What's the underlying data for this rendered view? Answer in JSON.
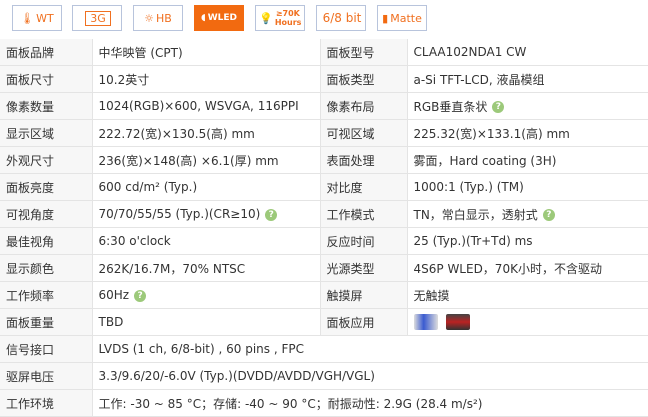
{
  "badges": [
    {
      "label": "WT",
      "icon": "thermometer-icon"
    },
    {
      "label": "3G",
      "icon": "3g-icon"
    },
    {
      "label": "HB",
      "icon": "sun-icon"
    },
    {
      "label": "WLED",
      "icon": "led-icon"
    },
    {
      "label": "≥70K Hours",
      "icon": "bulb-icon"
    },
    {
      "label": "6/8 bit",
      "icon": "bit-icon"
    },
    {
      "label": "Matte",
      "icon": "matte-icon"
    }
  ],
  "colors": {
    "accent": "#f26a10",
    "help": "#9cc97a"
  },
  "rows": [
    {
      "l1": "面板品牌",
      "v1": "中华映管 (CPT)",
      "l2": "面板型号",
      "v2": "CLAA102NDA1 CW"
    },
    {
      "l1": "面板尺寸",
      "v1": "10.2英寸",
      "l2": "面板类型",
      "v2": "a-Si TFT-LCD, 液晶模组"
    },
    {
      "l1": "像素数量",
      "v1": "1024(RGB)×600, WSVGA, 116PPI",
      "l2": "像素布局",
      "v2": "RGB垂直条状",
      "h2": true
    },
    {
      "l1": "显示区域",
      "v1": "222.72(宽)×130.5(高) mm",
      "l2": "可视区域",
      "v2": "225.32(宽)×133.1(高) mm"
    },
    {
      "l1": "外观尺寸",
      "v1": "236(宽)×148(高) ×6.1(厚) mm",
      "l2": "表面处理",
      "v2": "雾面，Hard coating (3H)"
    },
    {
      "l1": "面板亮度",
      "v1": "600 cd/m² (Typ.)",
      "l2": "对比度",
      "v2": "1000:1 (Typ.) (TM)"
    },
    {
      "l1": "可视角度",
      "v1": "70/70/55/55 (Typ.)(CR≥10)",
      "h1": true,
      "l2": "工作模式",
      "v2": "TN，常白显示，透射式",
      "h2": true
    },
    {
      "l1": "最佳视角",
      "v1": "6:30 o'clock",
      "l2": "反应时间",
      "v2": "25 (Typ.)(Tr+Td) ms"
    },
    {
      "l1": "显示颜色",
      "v1": "262K/16.7M，70% NTSC",
      "l2": "光源类型",
      "v2": "4S6P WLED，70K小时，不含驱动"
    },
    {
      "l1": "工作频率",
      "v1": "60Hz",
      "h1": true,
      "l2": "触摸屏",
      "v2": "无触摸"
    },
    {
      "l1": "面板重量",
      "v1": "TBD",
      "l2": "面板应用",
      "v2": "",
      "apps": true
    }
  ],
  "wide": [
    {
      "l": "信号接口",
      "v": "LVDS (1 ch, 6/8-bit) , 60 pins , FPC"
    },
    {
      "l": "驱屏电压",
      "v": "3.3/9.6/20/-6.0V (Typ.)(DVDD/AVDD/VGH/VGL)"
    },
    {
      "l": "工作环境",
      "v": "工作: -30 ~ 85 °C；存储: -40 ~ 90 °C；耐振动性: 2.9G (28.4 m/s²)"
    }
  ],
  "help_glyph": "?"
}
